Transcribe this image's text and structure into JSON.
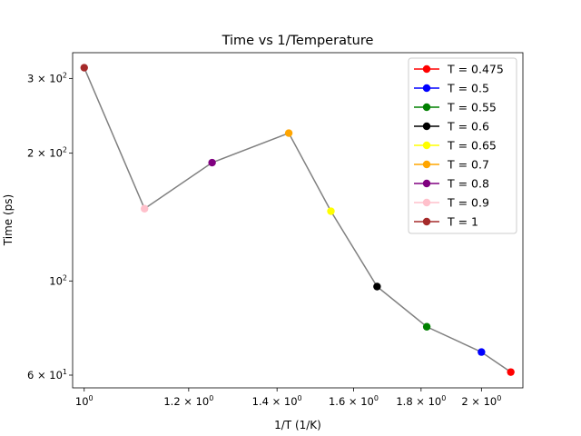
{
  "chart_data": {
    "type": "scatter",
    "title": "Time vs 1/Temperature",
    "xlabel": "1/T (1/K)",
    "ylabel": "Time (ps)",
    "xscale": "log",
    "yscale": "log",
    "xlim": [
      0.98,
      2.15
    ],
    "ylim": [
      56,
      345
    ],
    "grid": false,
    "legend_position": "top-right",
    "line_color": "#808080",
    "x_ticks": [
      {
        "value": 1.0,
        "base": "10",
        "exp": "0",
        "mant": ""
      },
      {
        "value": 1.2,
        "base": "10",
        "exp": "0",
        "mant": "1.2 × "
      },
      {
        "value": 1.4,
        "base": "10",
        "exp": "0",
        "mant": "1.4 × "
      },
      {
        "value": 1.6,
        "base": "10",
        "exp": "0",
        "mant": "1.6 × "
      },
      {
        "value": 1.8,
        "base": "10",
        "exp": "0",
        "mant": "1.8 × "
      },
      {
        "value": 2.0,
        "base": "10",
        "exp": "0",
        "mant": "2 × "
      }
    ],
    "y_ticks": [
      {
        "value": 60,
        "base": "10",
        "exp": "1",
        "mant": "6 × "
      },
      {
        "value": 100,
        "base": "10",
        "exp": "2",
        "mant": ""
      },
      {
        "value": 200,
        "base": "10",
        "exp": "2",
        "mant": "2 × "
      },
      {
        "value": 300,
        "base": "10",
        "exp": "2",
        "mant": "3 × "
      }
    ],
    "series": [
      {
        "name": "T = 0.475",
        "x": 2.105,
        "y": 61,
        "color": "#ff0000"
      },
      {
        "name": "T = 0.5",
        "x": 2.0,
        "y": 68,
        "color": "#0000ff"
      },
      {
        "name": "T = 0.55",
        "x": 1.818,
        "y": 78,
        "color": "#008000"
      },
      {
        "name": "T = 0.6",
        "x": 1.667,
        "y": 97,
        "color": "#000000"
      },
      {
        "name": "T = 0.65",
        "x": 1.538,
        "y": 146,
        "color": "#ffff00"
      },
      {
        "name": "T = 0.7",
        "x": 1.429,
        "y": 223,
        "color": "#ffa500"
      },
      {
        "name": "T = 0.8",
        "x": 1.25,
        "y": 190,
        "color": "#800080"
      },
      {
        "name": "T = 0.9",
        "x": 1.111,
        "y": 148,
        "color": "#ffc0cb"
      },
      {
        "name": "T = 1",
        "x": 1.0,
        "y": 318,
        "color": "#a52a2a"
      }
    ]
  }
}
